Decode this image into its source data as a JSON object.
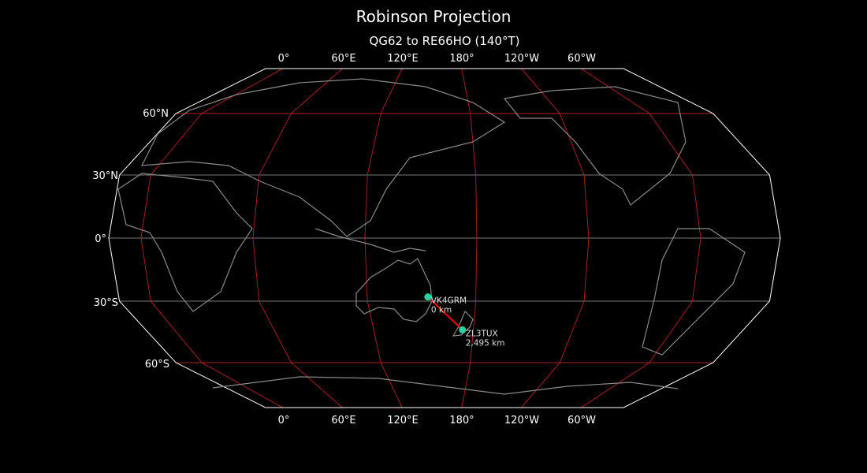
{
  "title": "Robinson Projection",
  "subtitle": "QG62 to RE66HO (140°T)",
  "map": {
    "projection": "Robinson",
    "central_longitude": 162.7,
    "colors": {
      "background": "#000000",
      "coastline": "#8a8a8a",
      "meridian": "#b22222",
      "parallel_60": "#b22222",
      "parallel_other": "#777777",
      "path": "#ff0000",
      "station": "#1fd6a0",
      "boundary": "#ffffff"
    },
    "lon_ticks": [
      "0°",
      "60°E",
      "120°E",
      "180°",
      "120°W",
      "60°W"
    ],
    "lat_ticks": [
      "60°N",
      "30°N",
      "0°",
      "30°S",
      "60°S"
    ]
  },
  "stations": [
    {
      "call": "VK4GRM",
      "distance": "0 km",
      "lat": -28,
      "lon": 153.5
    },
    {
      "call": "ZL3TUX",
      "distance": "2,495 km",
      "lat": -44,
      "lon": 173.5
    }
  ]
}
